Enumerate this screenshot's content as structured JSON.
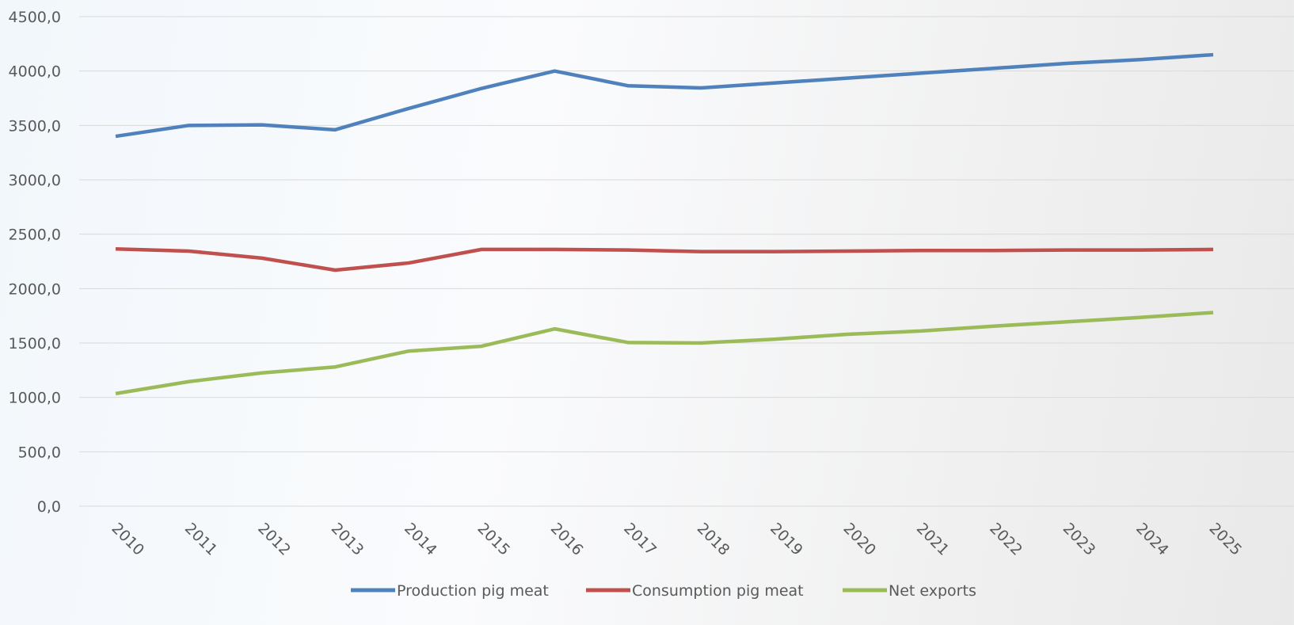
{
  "chart_data": {
    "type": "line",
    "categories": [
      "2010",
      "2011",
      "2012",
      "2013",
      "2014",
      "2015",
      "2016",
      "2017",
      "2018",
      "2019",
      "2020",
      "2021",
      "2022",
      "2023",
      "2024",
      "2025"
    ],
    "series": [
      {
        "name": "Production pig meat",
        "color": "#4f81bd",
        "values": [
          3400,
          3500,
          3505,
          3460,
          3655,
          3840,
          4000,
          3865,
          3845,
          3890,
          3935,
          3980,
          4025,
          4070,
          4105,
          4150
        ]
      },
      {
        "name": "Consumption pig meat",
        "color": "#c0504d",
        "values": [
          2365,
          2345,
          2280,
          2170,
          2235,
          2360,
          2360,
          2355,
          2340,
          2340,
          2345,
          2350,
          2350,
          2355,
          2355,
          2360
        ]
      },
      {
        "name": "Net exports",
        "color": "#9bbb59",
        "values": [
          1035,
          1145,
          1225,
          1280,
          1425,
          1470,
          1630,
          1505,
          1500,
          1535,
          1580,
          1610,
          1655,
          1695,
          1735,
          1780
        ]
      }
    ],
    "ylim": [
      0,
      4500
    ],
    "yticks": [
      {
        "value": 0,
        "label": "0,0"
      },
      {
        "value": 500,
        "label": "500,0"
      },
      {
        "value": 1000,
        "label": "1000,0"
      },
      {
        "value": 1500,
        "label": "1500,0"
      },
      {
        "value": 2000,
        "label": "2000,0"
      },
      {
        "value": 2500,
        "label": "2500,0"
      },
      {
        "value": 3000,
        "label": "3000,0"
      },
      {
        "value": 3500,
        "label": "3500,0"
      },
      {
        "value": 4000,
        "label": "4000,0"
      },
      {
        "value": 4500,
        "label": "4500,0"
      }
    ],
    "grid": true
  }
}
